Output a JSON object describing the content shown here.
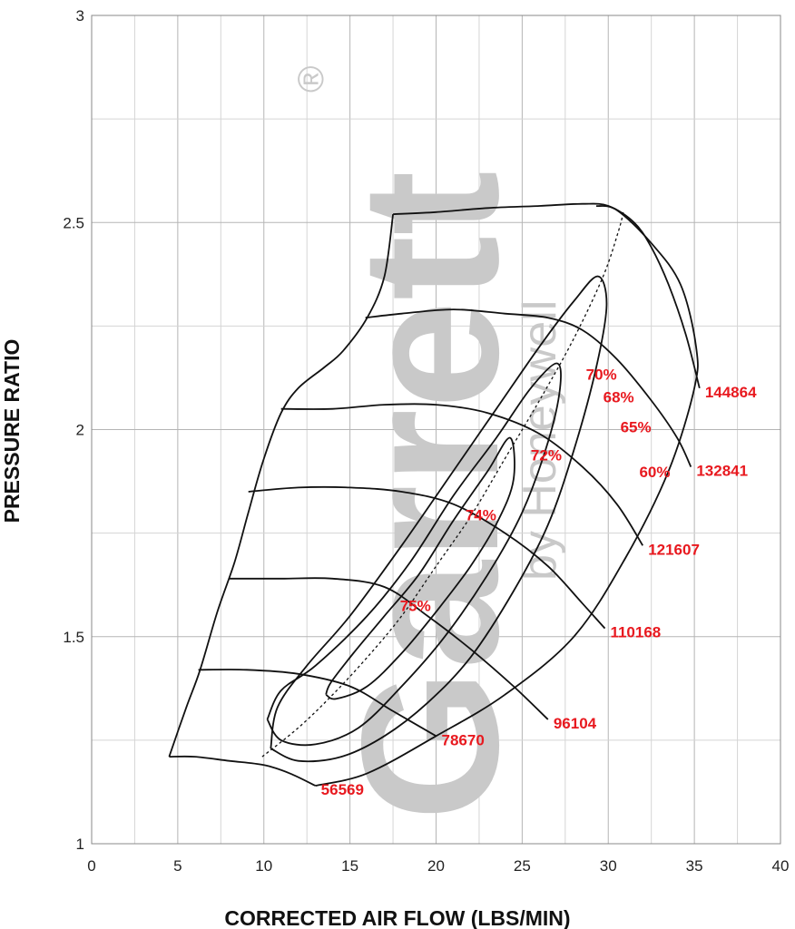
{
  "chart_data": {
    "type": "line",
    "title": "",
    "xlabel": "CORRECTED AIR FLOW (LBS/MIN)",
    "ylabel": "PRESSURE RATIO",
    "xlim": [
      0,
      40
    ],
    "ylim": [
      1,
      3
    ],
    "x_ticks": [
      "0",
      "5",
      "10",
      "15",
      "20",
      "25",
      "30",
      "35",
      "40"
    ],
    "y_ticks": [
      "1",
      "1.5",
      "2",
      "2.5",
      "3"
    ],
    "grid": true,
    "watermark": {
      "brand": "Garrett",
      "sub": "by Honeywell",
      "mark": "®"
    },
    "speed_lines": [
      {
        "name": "56569",
        "points": [
          [
            4.5,
            1.21
          ],
          [
            6.0,
            1.21
          ],
          [
            8.0,
            1.2
          ],
          [
            10.0,
            1.19
          ],
          [
            11.5,
            1.17
          ],
          [
            13.0,
            1.14
          ]
        ]
      },
      {
        "name": "78670",
        "points": [
          [
            6.2,
            1.42
          ],
          [
            9.0,
            1.42
          ],
          [
            12.0,
            1.41
          ],
          [
            15.0,
            1.38
          ],
          [
            17.5,
            1.32
          ],
          [
            20.0,
            1.26
          ]
        ]
      },
      {
        "name": "96104",
        "points": [
          [
            8.0,
            1.64
          ],
          [
            11.0,
            1.64
          ],
          [
            14.0,
            1.64
          ],
          [
            17.0,
            1.62
          ],
          [
            19.5,
            1.55
          ],
          [
            22.0,
            1.47
          ],
          [
            24.5,
            1.38
          ],
          [
            26.5,
            1.3
          ]
        ]
      },
      {
        "name": "110168",
        "points": [
          [
            9.1,
            1.85
          ],
          [
            12.0,
            1.86
          ],
          [
            15.0,
            1.86
          ],
          [
            18.0,
            1.85
          ],
          [
            21.0,
            1.82
          ],
          [
            24.0,
            1.75
          ],
          [
            26.5,
            1.67
          ],
          [
            28.5,
            1.58
          ],
          [
            29.8,
            1.52
          ]
        ]
      },
      {
        "name": "121607",
        "points": [
          [
            11.0,
            2.05
          ],
          [
            14.0,
            2.05
          ],
          [
            17.0,
            2.06
          ],
          [
            20.0,
            2.06
          ],
          [
            23.0,
            2.04
          ],
          [
            26.0,
            1.99
          ],
          [
            28.5,
            1.91
          ],
          [
            30.5,
            1.82
          ],
          [
            32.0,
            1.72
          ]
        ]
      },
      {
        "name": "132841",
        "points": [
          [
            15.9,
            2.27
          ],
          [
            18.0,
            2.28
          ],
          [
            21.0,
            2.29
          ],
          [
            24.0,
            2.28
          ],
          [
            26.5,
            2.27
          ],
          [
            28.5,
            2.24
          ],
          [
            30.5,
            2.17
          ],
          [
            32.5,
            2.07
          ],
          [
            34.0,
            1.98
          ],
          [
            34.8,
            1.91
          ]
        ]
      },
      {
        "name": "144864",
        "points": [
          [
            17.5,
            2.52
          ],
          [
            20.0,
            2.525
          ],
          [
            23.0,
            2.535
          ],
          [
            26.0,
            2.54
          ],
          [
            28.5,
            2.545
          ],
          [
            30.0,
            2.54
          ],
          [
            31.5,
            2.5
          ],
          [
            32.5,
            2.44
          ],
          [
            33.5,
            2.35
          ],
          [
            34.5,
            2.23
          ],
          [
            35.3,
            2.1
          ]
        ]
      }
    ],
    "efficiency_islands": [
      {
        "name": "75%",
        "points": [
          [
            13.6,
            1.36
          ],
          [
            14.2,
            1.35
          ],
          [
            16.0,
            1.38
          ],
          [
            18.0,
            1.46
          ],
          [
            20.0,
            1.56
          ],
          [
            22.0,
            1.67
          ],
          [
            23.6,
            1.78
          ],
          [
            24.5,
            1.88
          ],
          [
            24.3,
            1.98
          ],
          [
            23.0,
            1.9
          ],
          [
            21.0,
            1.78
          ],
          [
            19.0,
            1.65
          ],
          [
            17.0,
            1.55
          ],
          [
            15.2,
            1.46
          ],
          [
            13.9,
            1.39
          ],
          [
            13.6,
            1.36
          ]
        ]
      },
      {
        "name": "74%",
        "points": [
          [
            10.2,
            1.3
          ],
          [
            11.0,
            1.25
          ],
          [
            13.0,
            1.24
          ],
          [
            15.5,
            1.28
          ],
          [
            18.0,
            1.38
          ],
          [
            20.5,
            1.5
          ],
          [
            23.0,
            1.65
          ],
          [
            25.0,
            1.8
          ],
          [
            26.5,
            1.97
          ],
          [
            27.2,
            2.1
          ],
          [
            27.0,
            2.16
          ],
          [
            25.5,
            2.1
          ],
          [
            23.5,
            1.98
          ],
          [
            21.0,
            1.84
          ],
          [
            18.5,
            1.68
          ],
          [
            16.0,
            1.55
          ],
          [
            13.0,
            1.43
          ],
          [
            11.0,
            1.37
          ],
          [
            10.2,
            1.3
          ]
        ]
      },
      {
        "name": "72%",
        "points": [
          [
            10.4,
            1.23
          ],
          [
            12.0,
            1.2
          ],
          [
            14.5,
            1.21
          ],
          [
            17.0,
            1.26
          ],
          [
            19.5,
            1.34
          ],
          [
            22.0,
            1.45
          ],
          [
            24.5,
            1.61
          ],
          [
            26.5,
            1.77
          ],
          [
            28.0,
            1.95
          ],
          [
            29.3,
            2.15
          ],
          [
            29.9,
            2.3
          ],
          [
            29.4,
            2.37
          ],
          [
            28.0,
            2.31
          ],
          [
            26.0,
            2.2
          ],
          [
            23.5,
            2.05
          ],
          [
            21.0,
            1.9
          ],
          [
            18.0,
            1.72
          ],
          [
            15.0,
            1.55
          ],
          [
            12.5,
            1.43
          ],
          [
            10.8,
            1.33
          ],
          [
            10.4,
            1.23
          ]
        ]
      }
    ],
    "efficiency_labels": [
      {
        "text": "75%",
        "x": 18.8,
        "y": 1.562
      },
      {
        "text": "74%",
        "x": 22.6,
        "y": 1.781
      },
      {
        "text": "72%",
        "x": 26.4,
        "y": 1.925
      },
      {
        "text": "70%",
        "x": 29.6,
        "y": 2.121
      },
      {
        "text": "68%",
        "x": 30.6,
        "y": 2.066
      },
      {
        "text": "65%",
        "x": 31.6,
        "y": 1.993
      },
      {
        "text": "60%",
        "x": 32.7,
        "y": 1.885
      }
    ],
    "surge_line": [
      [
        4.5,
        1.21
      ],
      [
        5.5,
        1.33
      ],
      [
        6.3,
        1.42
      ],
      [
        7.3,
        1.56
      ],
      [
        8.3,
        1.68
      ],
      [
        9.1,
        1.8
      ],
      [
        10.0,
        1.93
      ],
      [
        11.0,
        2.04
      ],
      [
        12.0,
        2.1
      ],
      [
        13.5,
        2.15
      ],
      [
        14.6,
        2.19
      ],
      [
        16.0,
        2.27
      ],
      [
        17.0,
        2.37
      ],
      [
        17.5,
        2.52
      ]
    ],
    "choke_line": [
      [
        13.0,
        1.14
      ],
      [
        16.0,
        1.17
      ],
      [
        20.0,
        1.26
      ],
      [
        24.0,
        1.36
      ],
      [
        28.0,
        1.5
      ],
      [
        31.0,
        1.69
      ],
      [
        33.5,
        1.9
      ],
      [
        35.0,
        2.1
      ],
      [
        35.1,
        2.2
      ],
      [
        34.2,
        2.35
      ],
      [
        32.5,
        2.45
      ],
      [
        30.5,
        2.53
      ],
      [
        29.3,
        2.54
      ]
    ],
    "peak_line": [
      [
        9.9,
        1.21
      ],
      [
        12.0,
        1.28
      ],
      [
        14.0,
        1.36
      ],
      [
        16.0,
        1.45
      ],
      [
        18.0,
        1.55
      ],
      [
        20.0,
        1.67
      ],
      [
        22.0,
        1.79
      ],
      [
        24.0,
        1.93
      ],
      [
        26.0,
        2.07
      ],
      [
        28.0,
        2.22
      ],
      [
        29.7,
        2.37
      ],
      [
        30.6,
        2.48
      ],
      [
        30.9,
        2.53
      ]
    ]
  }
}
